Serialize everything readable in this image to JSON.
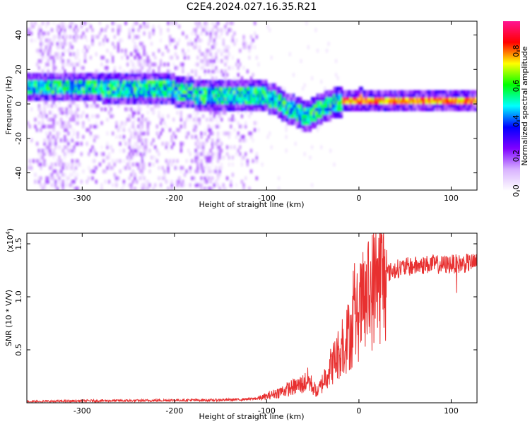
{
  "figure": {
    "title": "C2E4.2024.027.16.35.R21"
  },
  "chart_data": [
    {
      "type": "heatmap",
      "title": "C2E4.2024.027.16.35.R21",
      "xlabel": "Height of straight line (km)",
      "ylabel": "Frequency (Hz)",
      "xlim": [
        -360,
        128
      ],
      "ylim": [
        -50,
        48
      ],
      "x_ticks": [
        -300,
        -200,
        -100,
        0,
        100
      ],
      "x_tick_labels": [
        "-300",
        "-200",
        "-100",
        "0",
        "100"
      ],
      "y_ticks": [
        -40,
        -20,
        0,
        20,
        40
      ],
      "y_tick_labels": [
        "-40",
        "-20",
        "0",
        "20",
        "40"
      ],
      "colorbar": {
        "label": "Normalized spectral amplitude",
        "range": [
          0,
          0.97
        ],
        "ticks": [
          0.0,
          0.2,
          0.4,
          0.6,
          0.8
        ],
        "tick_labels": [
          "0.0",
          "0.2",
          "0.4",
          "0.6",
          "0.8"
        ],
        "colormap": [
          "#ffffff",
          "#d9b3ff",
          "#7f00ff",
          "#0000ff",
          "#00ffff",
          "#00ff00",
          "#ffff00",
          "#ff0000",
          "#ff1493"
        ]
      },
      "dominant_frequency_trace": {
        "x": [
          -310,
          -280,
          -250,
          -220,
          -200,
          -180,
          -160,
          -140,
          -120,
          -100,
          -90,
          -80,
          -70,
          -60,
          -55,
          -50,
          -40,
          -30,
          -20,
          -10,
          0,
          20,
          50,
          80,
          100,
          125
        ],
        "y": [
          9,
          9,
          8,
          8,
          7,
          5,
          4,
          4,
          4,
          3,
          1,
          -3,
          -5,
          -8,
          -8,
          -6,
          -3,
          -1,
          0,
          1,
          2,
          1,
          1,
          1,
          1,
          1
        ]
      },
      "grid": false
    },
    {
      "type": "line",
      "title": "",
      "xlabel": "Height of straight line (km)",
      "ylabel": "SNR (10 * V/V)",
      "y_scale_label": "(x10",
      "y_scale_exponent": "4",
      "xlim": [
        -360,
        128
      ],
      "ylim": [
        0,
        16000
      ],
      "x_ticks": [
        -300,
        -200,
        -100,
        0,
        100
      ],
      "x_tick_labels": [
        "-300",
        "-200",
        "-100",
        "0",
        "100"
      ],
      "y_ticks": [
        5000,
        10000,
        15000
      ],
      "y_tick_labels": [
        "0.5",
        "1.0",
        "1.5"
      ],
      "series": [
        {
          "color": "#e83030",
          "x": [
            -360,
            -320,
            -280,
            -240,
            -200,
            -160,
            -130,
            -110,
            -100,
            -90,
            -80,
            -70,
            -60,
            -55,
            -50,
            -45,
            -40,
            -35,
            -30,
            -25,
            -20,
            -15,
            -10,
            -5,
            0,
            5,
            10,
            15,
            20,
            25,
            30,
            40,
            50,
            60,
            70,
            80,
            90,
            100,
            110,
            120,
            128
          ],
          "y": [
            100,
            150,
            200,
            200,
            250,
            250,
            300,
            400,
            600,
            900,
            1200,
            1500,
            1800,
            2200,
            1500,
            1000,
            1800,
            2800,
            3500,
            4200,
            5000,
            5800,
            6500,
            7500,
            8500,
            9300,
            10000,
            10800,
            11400,
            11900,
            12200,
            12600,
            12800,
            12900,
            13000,
            13100,
            13000,
            13100,
            13100,
            13200,
            13200
          ]
        }
      ],
      "grid": false
    }
  ]
}
